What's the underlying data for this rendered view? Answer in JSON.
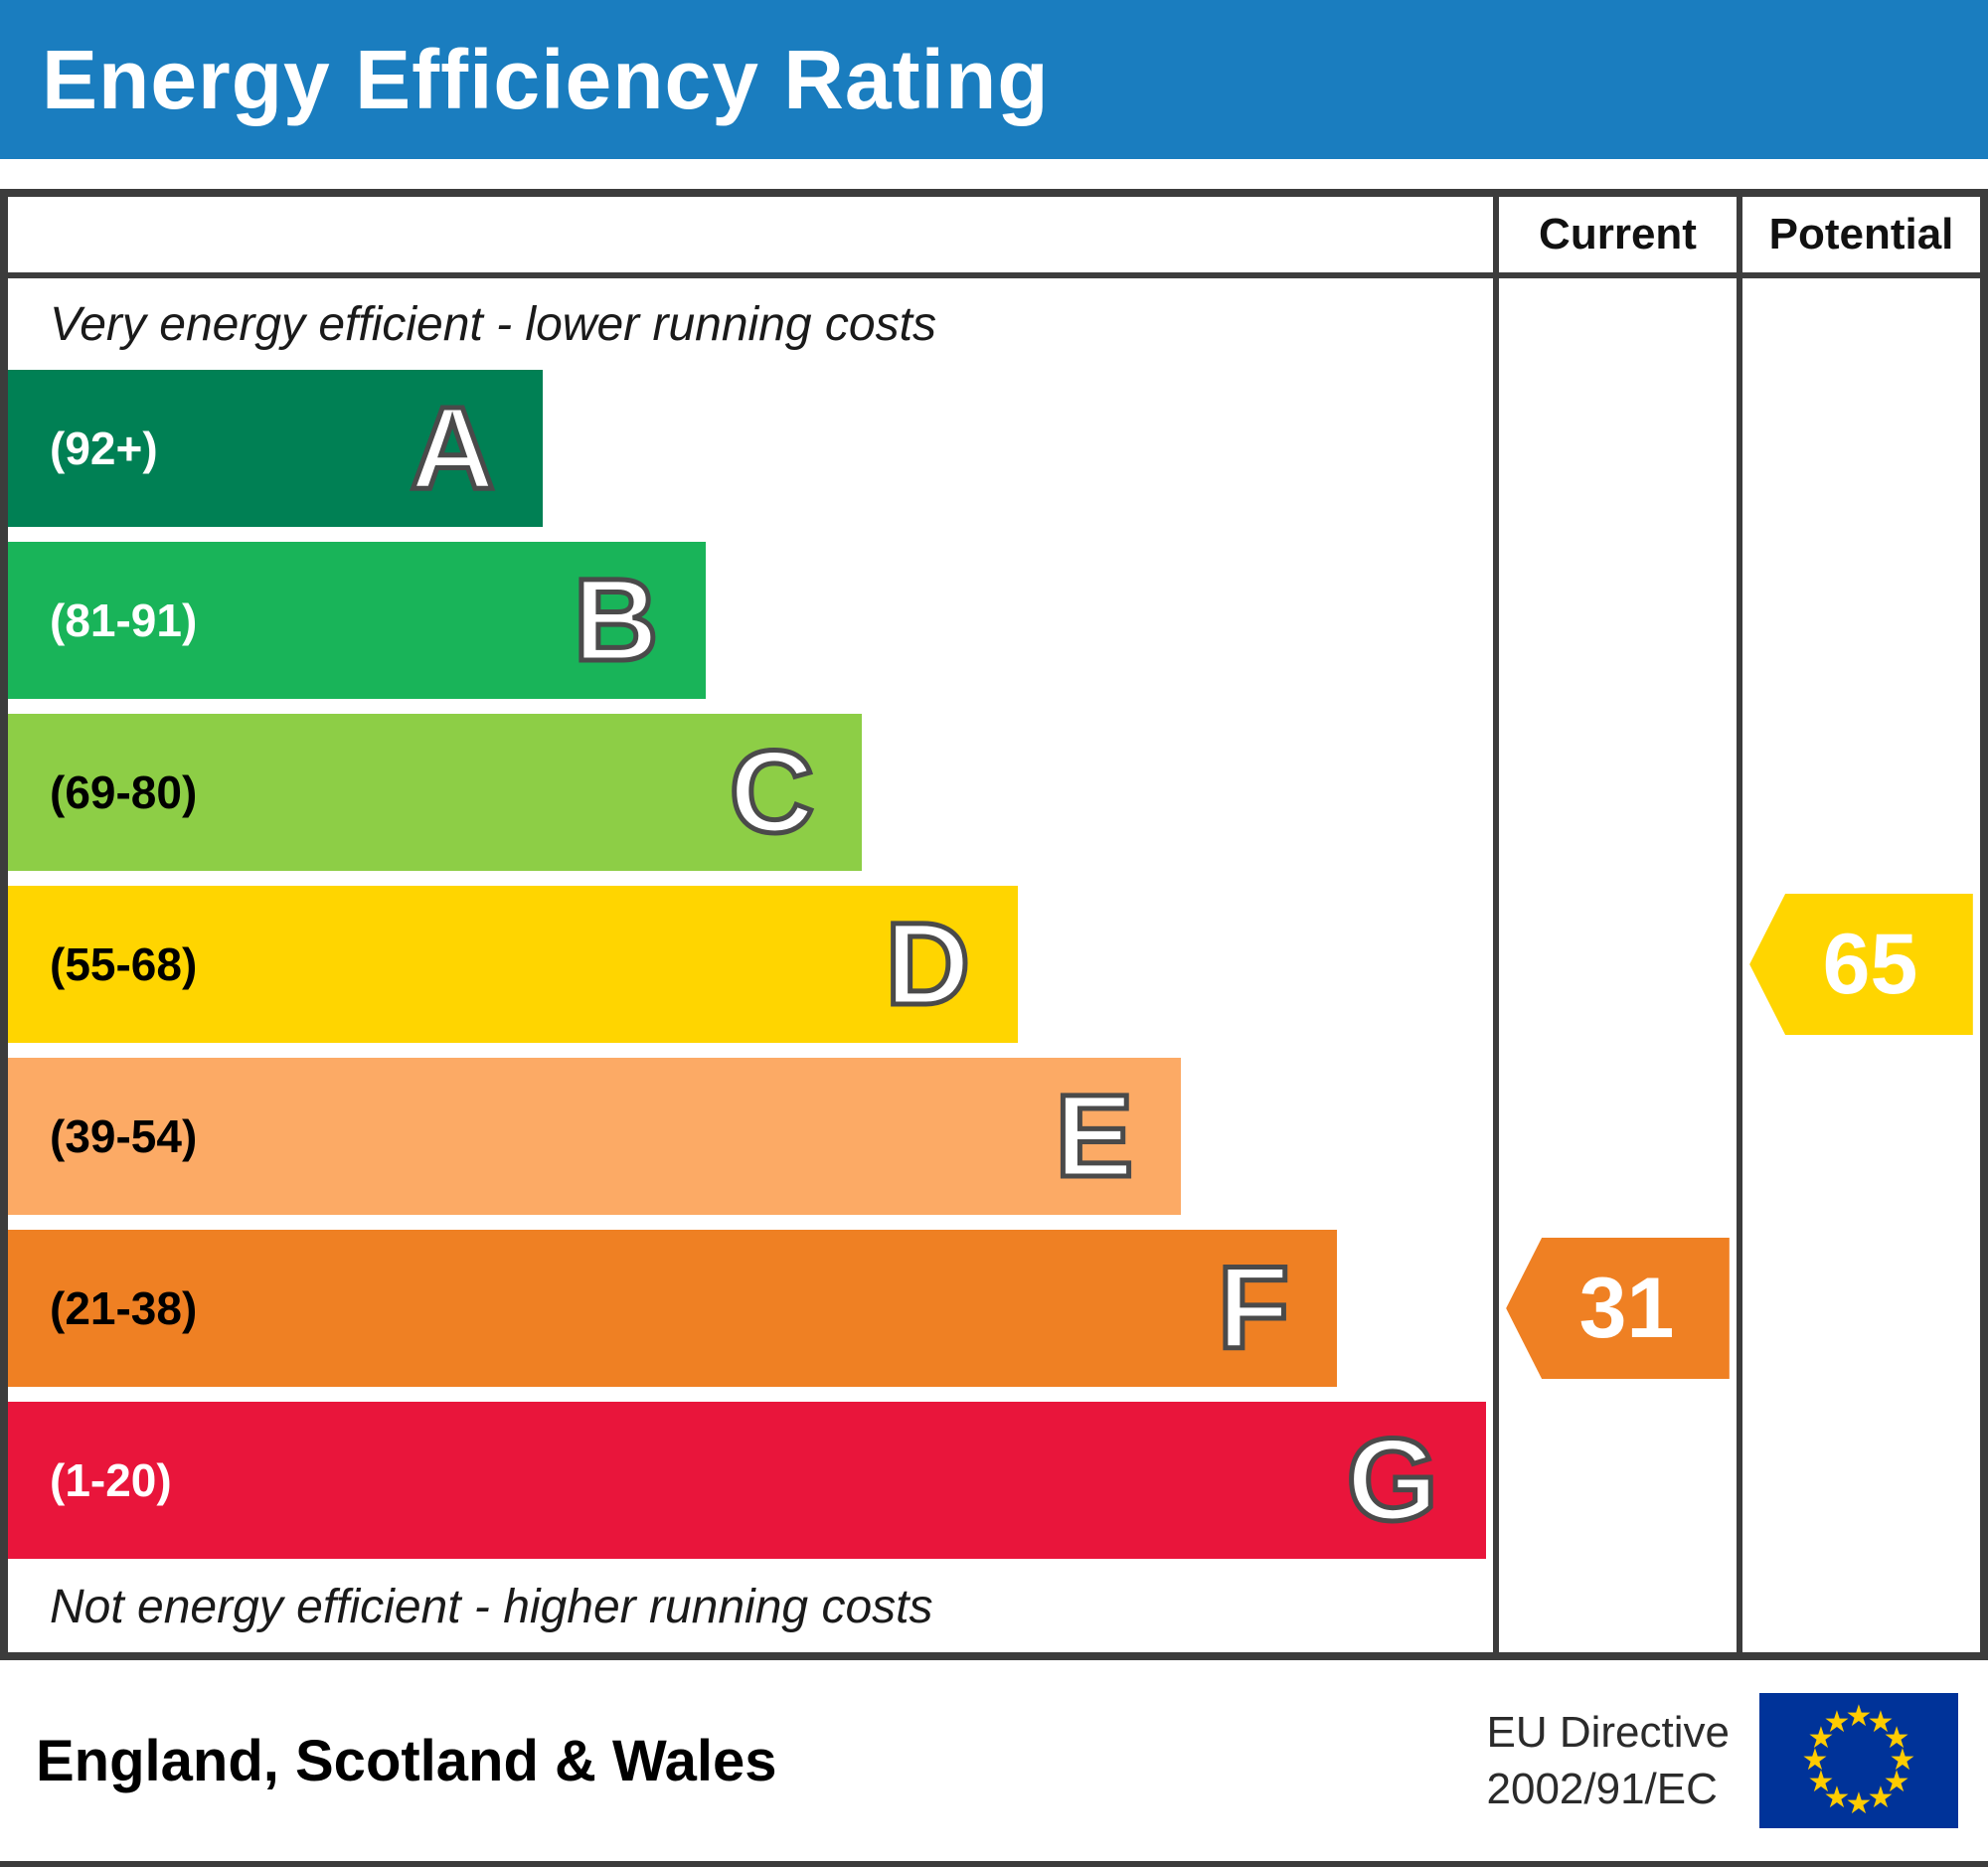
{
  "header": {
    "title": "Energy Efficiency Rating"
  },
  "columns": {
    "current_label": "Current",
    "potential_label": "Potential"
  },
  "chart_data": {
    "type": "bar",
    "title": "Energy Efficiency Rating",
    "top_caption": "Very energy efficient - lower running costs",
    "bottom_caption": "Not energy efficient - higher running costs",
    "bands": [
      {
        "letter": "A",
        "range": "(92+)",
        "color": "#008054",
        "text_color": "#ffffff",
        "width_pct": 36
      },
      {
        "letter": "B",
        "range": "(81-91)",
        "color": "#19b459",
        "text_color": "#ffffff",
        "width_pct": 47
      },
      {
        "letter": "C",
        "range": "(69-80)",
        "color": "#8dce46",
        "text_color": "#000000",
        "width_pct": 57.5
      },
      {
        "letter": "D",
        "range": "(55-68)",
        "color": "#ffd500",
        "text_color": "#000000",
        "width_pct": 68
      },
      {
        "letter": "E",
        "range": "(39-54)",
        "color": "#fcaa65",
        "text_color": "#000000",
        "width_pct": 79
      },
      {
        "letter": "F",
        "range": "(21-38)",
        "color": "#ef8023",
        "text_color": "#000000",
        "width_pct": 89.5
      },
      {
        "letter": "G",
        "range": "(1-20)",
        "color": "#e9153b",
        "text_color": "#ffffff",
        "width_pct": 99.5
      }
    ],
    "current": {
      "value": 31,
      "band": "F",
      "color": "#ef8023"
    },
    "potential": {
      "value": 65,
      "band": "D",
      "color": "#ffd500"
    }
  },
  "footer": {
    "region": "England, Scotland & Wales",
    "directive_line1": "EU Directive",
    "directive_line2": "2002/91/EC",
    "eu_flag": {
      "background": "#003399",
      "star_color": "#ffcc00",
      "star_count": 12
    }
  }
}
